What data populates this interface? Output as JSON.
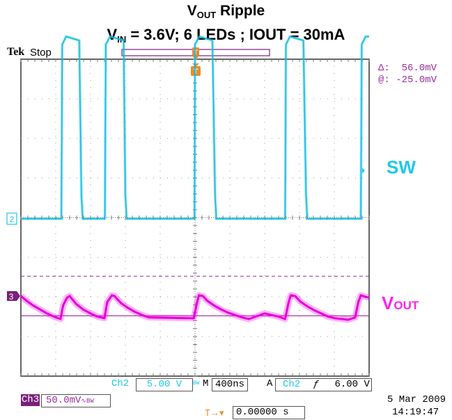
{
  "title": {
    "line1_main": "V",
    "line1_sub": "OUT",
    "line1_rest": " Ripple",
    "line2_v": "V",
    "line2_sub": "IN",
    "line2_rest": " = 3.6V; 6 LEDs ; IOUT = 30mA"
  },
  "header": {
    "brand": "Tek",
    "status": "Stop",
    "trigger_marker": "T"
  },
  "cursor": {
    "delta_label": "Δ:",
    "delta_value": "56.0mV",
    "at_label": "@:",
    "at_value": "-25.0mV"
  },
  "traces": {
    "sw": {
      "label": "SW",
      "color": "#1ec8e8",
      "marker": "2"
    },
    "vout": {
      "label_main": "V",
      "label_sub": "OUT",
      "color": "#ff22ee",
      "marker": "3"
    }
  },
  "status": {
    "ch2": "Ch2",
    "ch2_scale": "5.00 V",
    "ch2_bw": "BW",
    "timebase_prefix": "M",
    "timebase": "400ns",
    "acq": "A",
    "trig_src": "Ch2",
    "trig_slope": "ƒ",
    "trig_level": "6.00 V",
    "ch3": "Ch3",
    "ch3_scale": "50.0mV",
    "ch3_cpl": "∿BW",
    "trig_pos_marker": "T→▾",
    "trig_pos": "0.00000 s",
    "date": "5 Mar  2009",
    "time": "14:19:47"
  },
  "chart_data": {
    "type": "line",
    "xlabel": "",
    "ylabel": "",
    "x_unit": "ns",
    "x_divisions": 10,
    "x_per_div": 400,
    "xlim": [
      -2000,
      2000
    ],
    "grid": true,
    "series": [
      {
        "name": "SW",
        "unit": "V",
        "x": [
          -2000,
          -1535,
          -1525,
          -1480,
          -1330,
          -1305,
          -1290,
          -1035,
          -1025,
          -975,
          -820,
          -800,
          -785,
          -6,
          0,
          50,
          200,
          230,
          245,
          1035,
          1045,
          1090,
          1245,
          1275,
          1290,
          1905,
          1915,
          1960,
          2000
        ],
        "y": [
          0,
          0,
          22,
          23,
          22.5,
          3,
          0,
          0,
          22,
          23,
          22.5,
          3,
          0,
          0,
          22,
          23,
          22.5,
          3,
          0,
          0,
          22,
          23,
          22.5,
          3,
          0,
          0,
          22,
          23,
          23
        ]
      },
      {
        "name": "VOUT",
        "unit": "mV",
        "x": [
          -2000,
          -1935,
          -1860,
          -1780,
          -1700,
          -1620,
          -1545,
          -1515,
          -1470,
          -1440,
          -1365,
          -1285,
          -1200,
          -1120,
          -1040,
          -1010,
          -955,
          -925,
          -850,
          -770,
          -690,
          -610,
          -530,
          -15,
          20,
          45,
          90,
          140,
          220,
          300,
          380,
          460,
          540,
          620,
          800,
          960,
          1035,
          1075,
          1100,
          1150,
          1210,
          1290,
          1370,
          1450,
          1530,
          1610,
          1690,
          1760,
          1840,
          1875,
          1905,
          1955,
          2000
        ],
        "y": [
          0,
          -6,
          -12,
          -17,
          -22,
          -26,
          -29,
          -12,
          -2,
          0,
          -10,
          -17,
          -22,
          -26,
          -28,
          -8,
          1,
          0,
          -9,
          -15,
          -20,
          -24,
          -27,
          -28,
          -10,
          1,
          0,
          -6,
          -12,
          -17,
          -21,
          -24,
          -27,
          -29,
          -22,
          -26,
          -29,
          -8,
          1,
          0,
          -7,
          -13,
          -18,
          -22,
          -26,
          -28,
          -29,
          -30,
          -27,
          -8,
          1,
          -1,
          -2
        ]
      }
    ],
    "cursors_mV": [
      25,
      -25,
      -31
    ]
  }
}
